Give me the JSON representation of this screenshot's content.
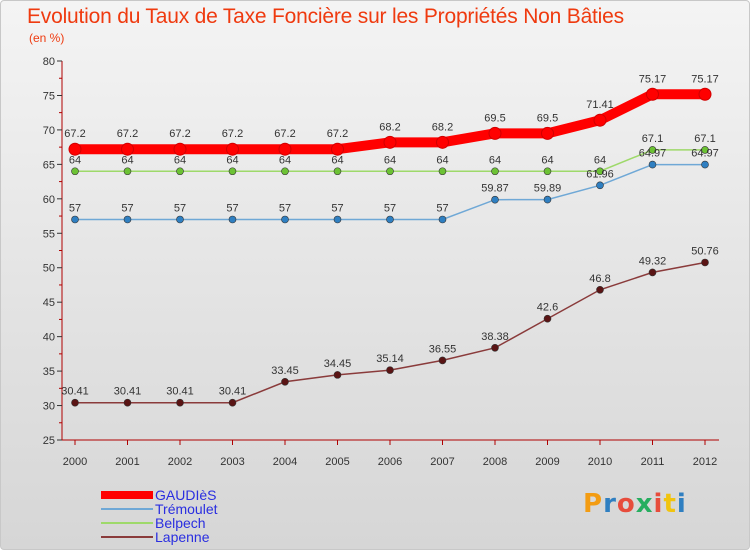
{
  "title": "Evolution du Taux de Taxe Foncière sur les Propriétés Non Bâties",
  "subtitle": "(en %)",
  "logo_text": "Proxiti",
  "chart_data": {
    "type": "line",
    "x": [
      "2000",
      "2001",
      "2002",
      "2003",
      "2004",
      "2005",
      "2006",
      "2007",
      "2008",
      "2009",
      "2010",
      "2011",
      "2012"
    ],
    "ylim": [
      25,
      80
    ],
    "yticks": [
      25,
      30,
      35,
      40,
      45,
      50,
      55,
      60,
      65,
      70,
      75,
      80
    ],
    "grid": false,
    "legend_position": "bottom-left",
    "series": [
      {
        "name": "GAUDIèS",
        "color": "#ff0000",
        "values": [
          67.2,
          67.2,
          67.2,
          67.2,
          67.2,
          67.2,
          68.2,
          68.2,
          69.5,
          69.5,
          71.41,
          75.17,
          75.17
        ],
        "labels": [
          "67.2",
          "67.2",
          "67.2",
          "67.2",
          "67.2",
          "67.2",
          "68.2",
          "68.2",
          "69.5",
          "69.5",
          "71.41",
          "75.17",
          "75.17"
        ]
      },
      {
        "name": "Trémoulet",
        "color": "#6fa8d6",
        "marker": "#2f7fc1",
        "values": [
          57,
          57,
          57,
          57,
          57,
          57,
          57,
          57,
          59.87,
          59.89,
          61.96,
          64.97,
          64.97
        ],
        "labels": [
          "57",
          "57",
          "57",
          "57",
          "57",
          "57",
          "57",
          "57",
          "59.87",
          "59.89",
          "61.96",
          "64.97",
          "64.97"
        ]
      },
      {
        "name": "Belpech",
        "color": "#9ed96a",
        "marker": "#6cc234",
        "values": [
          64,
          64,
          64,
          64,
          64,
          64,
          64,
          64,
          64,
          64,
          64,
          67.1,
          67.1
        ],
        "labels": [
          "64",
          "64",
          "64",
          "64",
          "64",
          "64",
          "64",
          "64",
          "64",
          "64",
          "64",
          "67.1",
          "67.1"
        ]
      },
      {
        "name": "Lapenne",
        "color": "#8a3b3b",
        "marker": "#5a1414",
        "values": [
          30.41,
          30.41,
          30.41,
          30.41,
          33.45,
          34.45,
          35.14,
          36.55,
          38.38,
          42.6,
          46.8,
          49.32,
          50.76
        ],
        "labels": [
          "30.41",
          "30.41",
          "30.41",
          "30.41",
          "33.45",
          "34.45",
          "35.14",
          "36.55",
          "38.38",
          "42.6",
          "46.8",
          "49.32",
          "50.76"
        ]
      }
    ]
  }
}
